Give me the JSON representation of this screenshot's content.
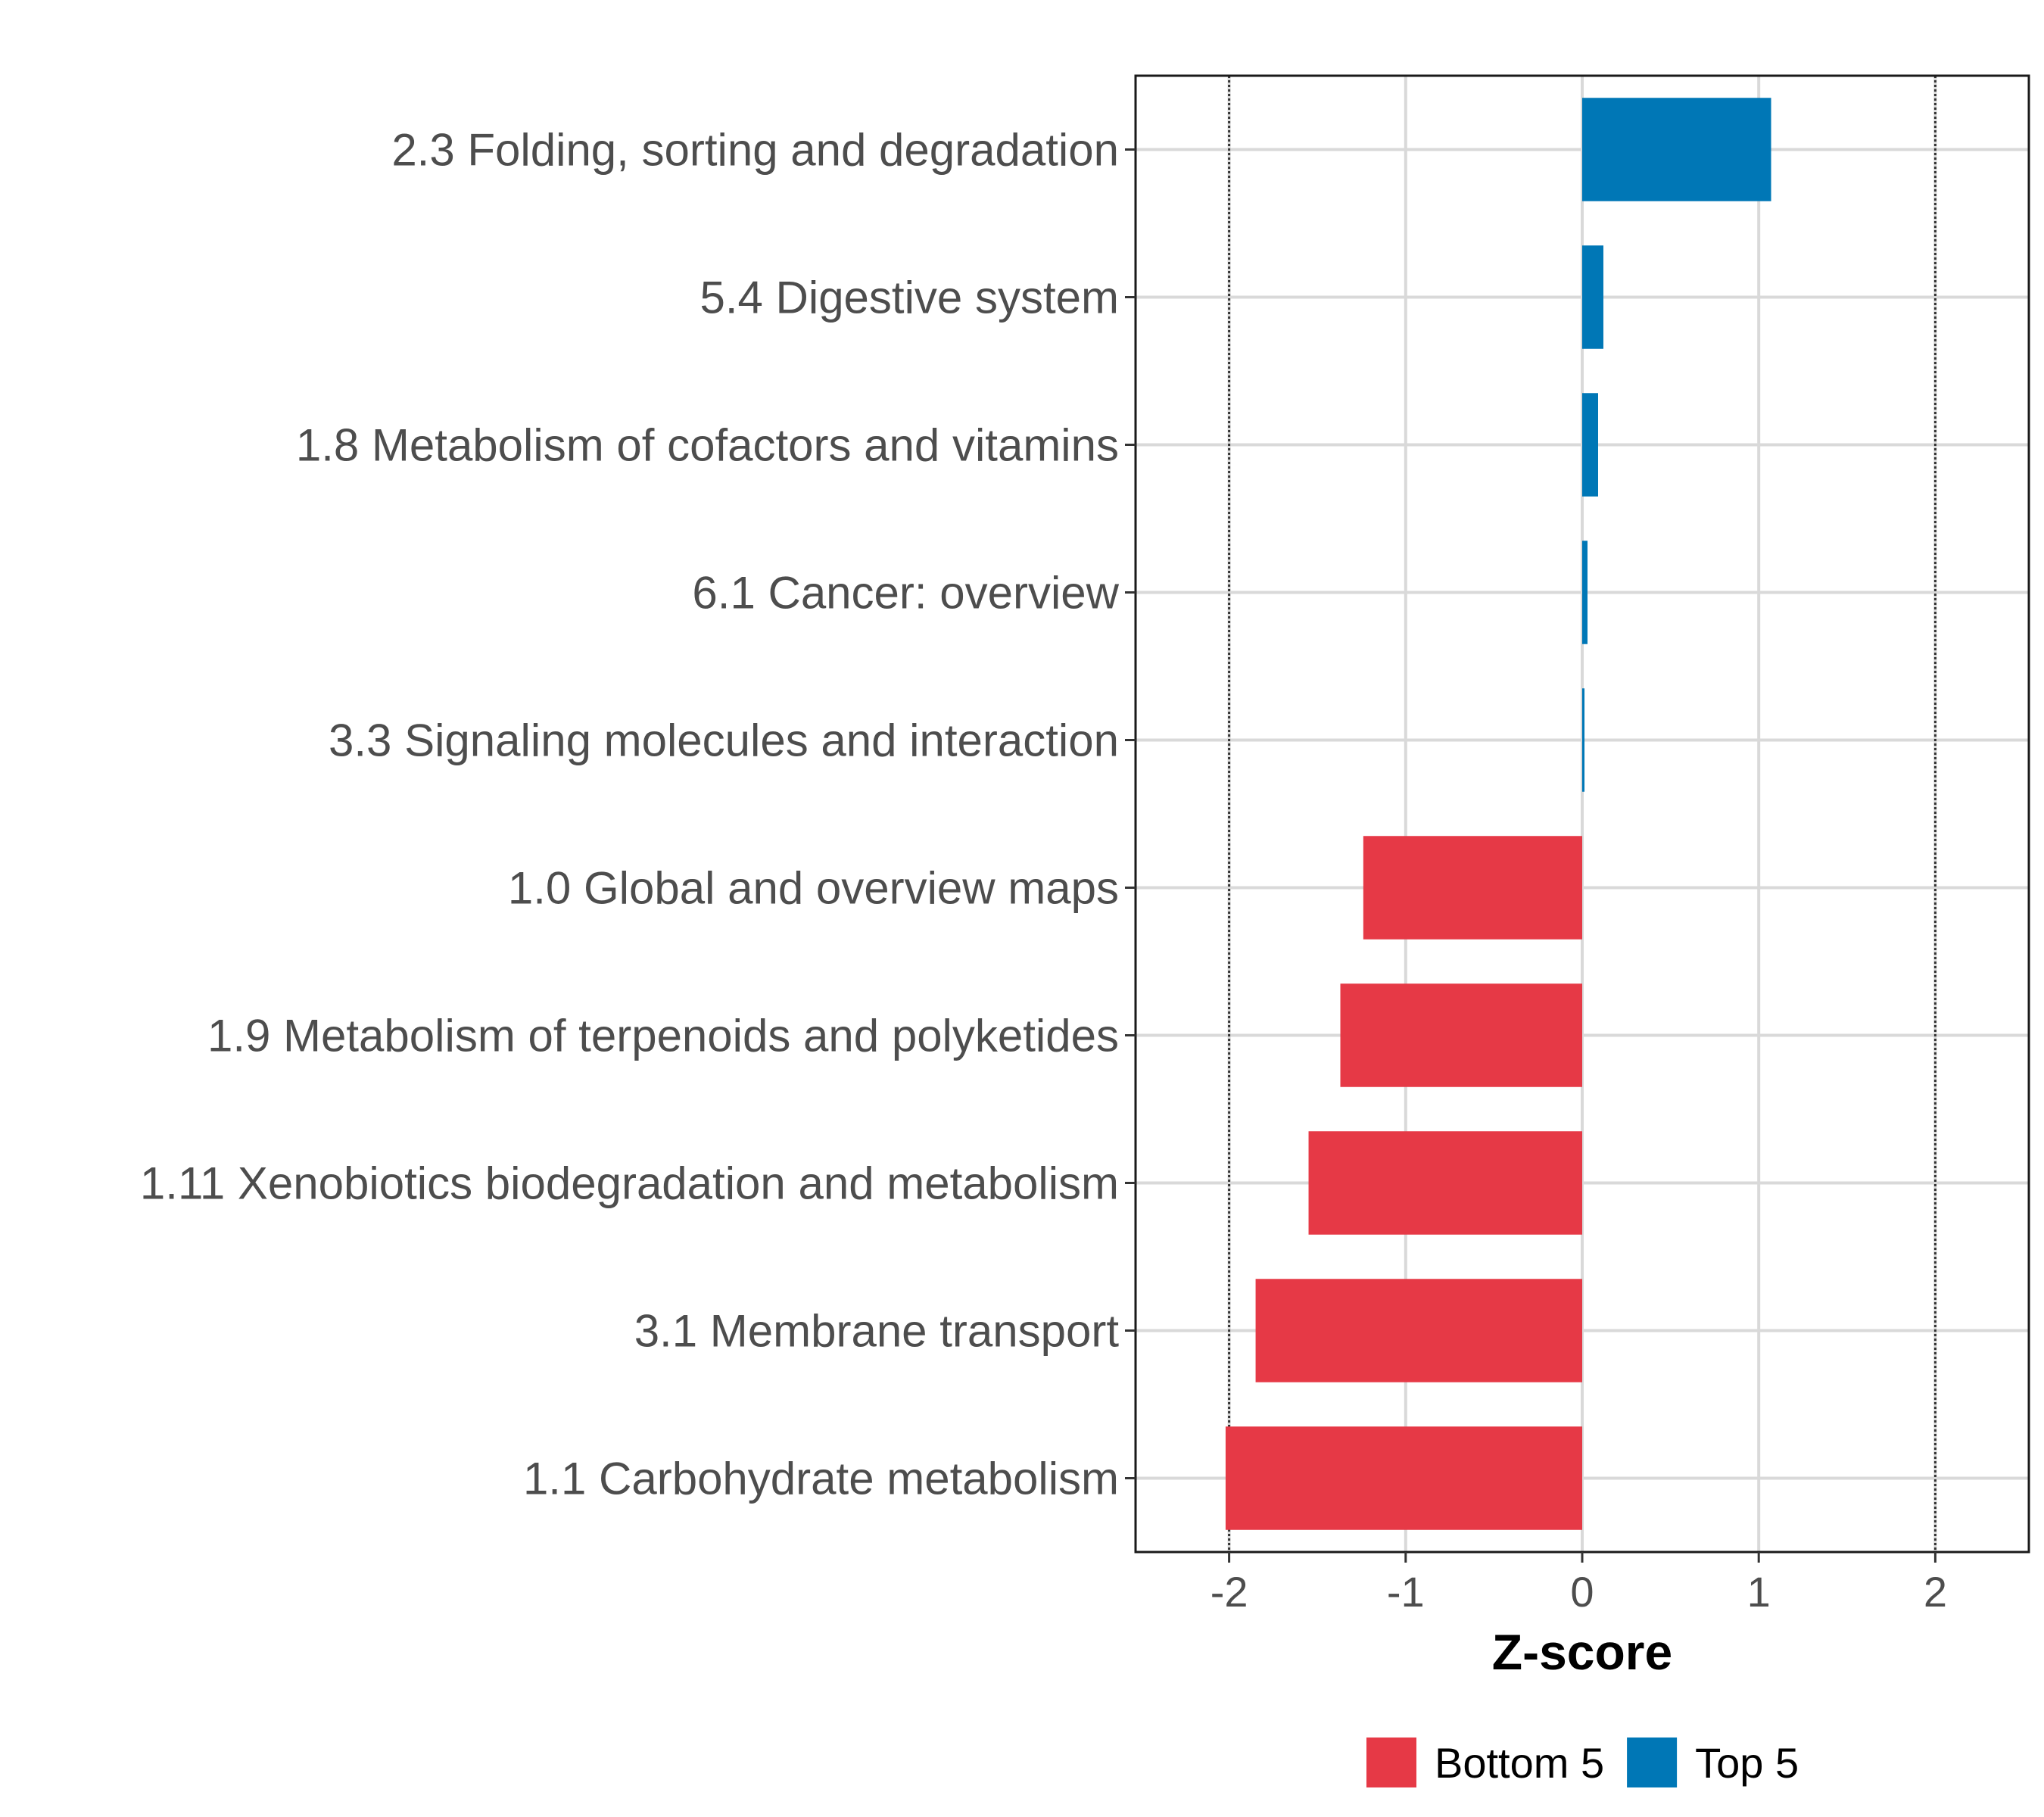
{
  "chart_data": {
    "type": "bar",
    "orientation": "horizontal",
    "title": "",
    "xlabel": "Z-score",
    "ylabel": "",
    "xlim": [
      -2.53,
      2.53
    ],
    "xticks": [
      -2,
      -1,
      0,
      1,
      2
    ],
    "xtick_labels": [
      "-2",
      "-1",
      "0",
      "1",
      "2"
    ],
    "reference_lines": [
      -2,
      2
    ],
    "grid": true,
    "categories": [
      "2.3 Folding, sorting and degradation",
      "5.4 Digestive system",
      "1.8 Metabolism of cofactors and vitamins",
      "6.1 Cancer: overview",
      "3.3 Signaling molecules and interaction",
      "1.0 Global and overview maps",
      "1.9 Metabolism of terpenoids and polyketides",
      "1.11 Xenobiotics biodegradation and metabolism",
      "3.1 Membrane transport",
      "1.1 Carbohydrate metabolism"
    ],
    "values": [
      1.07,
      0.12,
      0.09,
      0.03,
      0.01,
      -1.24,
      -1.37,
      -1.55,
      -1.85,
      -2.02
    ],
    "groups": [
      "Top 5",
      "Top 5",
      "Top 5",
      "Top 5",
      "Top 5",
      "Bottom 5",
      "Bottom 5",
      "Bottom 5",
      "Bottom 5",
      "Bottom 5"
    ],
    "legend": [
      {
        "name": "Bottom 5",
        "color": "#E63946"
      },
      {
        "name": "Top 5",
        "color": "#0077B6"
      }
    ],
    "legend_position": "bottom"
  }
}
